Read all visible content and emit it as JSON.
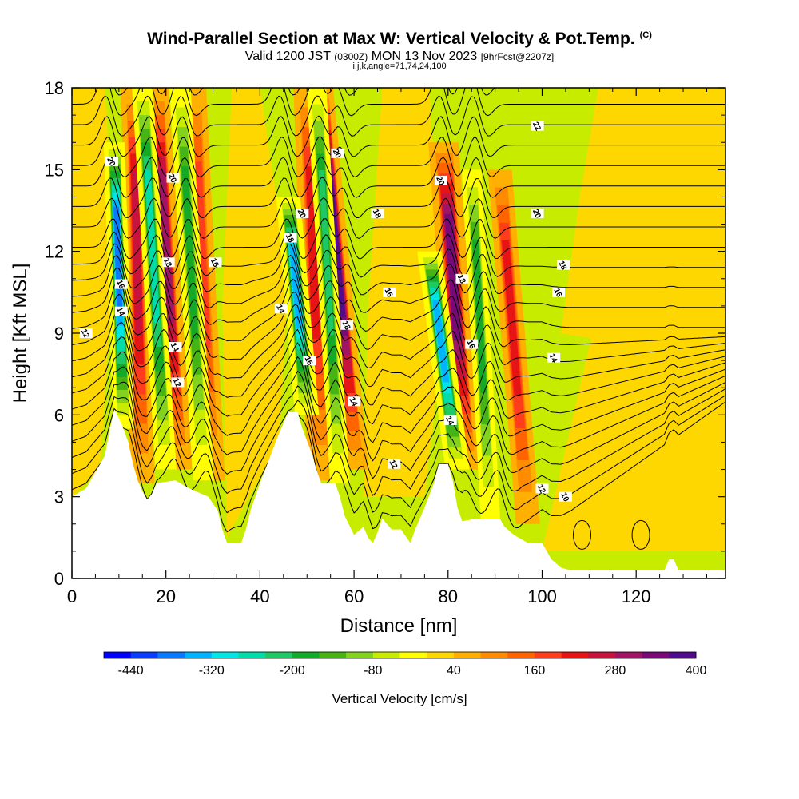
{
  "title": {
    "main": "Wind-Parallel Section at Max W: Vertical Velocity & Pot.Temp.",
    "copyright": "(C)",
    "sub_valid": "Valid 1200 JST",
    "sub_utc": "(0300Z)",
    "sub_date": "MON 13 Nov 2023",
    "sub_fcst": "[9hrFcst@2207z]",
    "meta": "i,j,k,angle=71,74,24,100"
  },
  "chart_data": {
    "type": "heatmap",
    "xlabel": "Distance [nm]",
    "ylabel": "Height [Kft MSL]",
    "xlim": [
      0,
      139
    ],
    "ylim": [
      0,
      18
    ],
    "x_ticks": [
      "0",
      "20",
      "40",
      "60",
      "80",
      "100",
      "120"
    ],
    "y_ticks": [
      "0",
      "3",
      "6",
      "9",
      "12",
      "15",
      "18"
    ],
    "x_tick_values": [
      0,
      20,
      40,
      60,
      80,
      100,
      120
    ],
    "y_tick_values": [
      0,
      3,
      6,
      9,
      12,
      15,
      18
    ],
    "colorbar": {
      "title": "Vertical Velocity [cm/s]",
      "tick_labels": [
        "-440",
        "-320",
        "-200",
        "-80",
        "40",
        "160",
        "280",
        "400"
      ],
      "tick_values": [
        -440,
        -320,
        -200,
        -80,
        40,
        160,
        280,
        400
      ],
      "colors": [
        "#0000ff",
        "#0a3cff",
        "#0a78ff",
        "#00b4ff",
        "#00e6e6",
        "#00dcaa",
        "#1ec864",
        "#14aa28",
        "#46b414",
        "#82d21e",
        "#c8ec00",
        "#ffff00",
        "#ffd700",
        "#ffb000",
        "#ff8c00",
        "#ff6400",
        "#ff3c1e",
        "#e61414",
        "#c8143c",
        "#a01464",
        "#780a78",
        "#500a8c"
      ]
    },
    "terrain_profile": [
      {
        "x": 0,
        "y": 3.0
      },
      {
        "x": 3,
        "y": 3.3
      },
      {
        "x": 5,
        "y": 3.9
      },
      {
        "x": 7,
        "y": 4.5
      },
      {
        "x": 8,
        "y": 5.4
      },
      {
        "x": 9,
        "y": 6.2
      },
      {
        "x": 10.5,
        "y": 5.7
      },
      {
        "x": 12,
        "y": 5.0
      },
      {
        "x": 13,
        "y": 4.2
      },
      {
        "x": 14,
        "y": 3.6
      },
      {
        "x": 15,
        "y": 3.2
      },
      {
        "x": 16,
        "y": 2.9
      },
      {
        "x": 17,
        "y": 3.1
      },
      {
        "x": 18,
        "y": 3.5
      },
      {
        "x": 22,
        "y": 3.6
      },
      {
        "x": 25,
        "y": 3.3
      },
      {
        "x": 29,
        "y": 3.0
      },
      {
        "x": 31,
        "y": 2.5
      },
      {
        "x": 32,
        "y": 1.8
      },
      {
        "x": 33,
        "y": 1.3
      },
      {
        "x": 36,
        "y": 1.3
      },
      {
        "x": 37,
        "y": 1.8
      },
      {
        "x": 38,
        "y": 2.5
      },
      {
        "x": 40,
        "y": 3.5
      },
      {
        "x": 42,
        "y": 4.4
      },
      {
        "x": 44,
        "y": 5.3
      },
      {
        "x": 46,
        "y": 6.1
      },
      {
        "x": 48,
        "y": 6.1
      },
      {
        "x": 49,
        "y": 5.5
      },
      {
        "x": 51,
        "y": 4.6
      },
      {
        "x": 52,
        "y": 4.0
      },
      {
        "x": 53,
        "y": 3.5
      },
      {
        "x": 56,
        "y": 3.5
      },
      {
        "x": 57,
        "y": 3.0
      },
      {
        "x": 58,
        "y": 2.3
      },
      {
        "x": 60,
        "y": 1.6
      },
      {
        "x": 62,
        "y": 1.9
      },
      {
        "x": 63,
        "y": 1.5
      },
      {
        "x": 64,
        "y": 1.3
      },
      {
        "x": 65,
        "y": 1.7
      },
      {
        "x": 66,
        "y": 2.2
      },
      {
        "x": 68,
        "y": 1.8
      },
      {
        "x": 70,
        "y": 1.8
      },
      {
        "x": 72,
        "y": 1.3
      },
      {
        "x": 73,
        "y": 1.8
      },
      {
        "x": 75,
        "y": 2.6
      },
      {
        "x": 77,
        "y": 3.5
      },
      {
        "x": 78,
        "y": 4.2
      },
      {
        "x": 80,
        "y": 4.2
      },
      {
        "x": 81,
        "y": 3.6
      },
      {
        "x": 82,
        "y": 2.6
      },
      {
        "x": 83,
        "y": 2.1
      },
      {
        "x": 86,
        "y": 2.2
      },
      {
        "x": 87,
        "y": 2.2
      },
      {
        "x": 91,
        "y": 2.2
      },
      {
        "x": 92,
        "y": 1.9
      },
      {
        "x": 94,
        "y": 1.6
      },
      {
        "x": 97,
        "y": 1.3
      },
      {
        "x": 100,
        "y": 1.3
      },
      {
        "x": 101,
        "y": 1.0
      },
      {
        "x": 102,
        "y": 0.7
      },
      {
        "x": 104,
        "y": 0.4
      },
      {
        "x": 106,
        "y": 0.3
      },
      {
        "x": 126,
        "y": 0.3
      },
      {
        "x": 127,
        "y": 0.7
      },
      {
        "x": 128,
        "y": 0.7
      },
      {
        "x": 129,
        "y": 0.3
      },
      {
        "x": 139,
        "y": 0.3
      }
    ],
    "updraft_bands": [
      {
        "x_base": 15,
        "y_base": 3.5,
        "x_top": 13,
        "y_top": 18,
        "half_width": 1.6,
        "w": 200
      },
      {
        "x_base": 23,
        "y_base": 4.0,
        "x_top": 18,
        "y_top": 18,
        "half_width": 1.6,
        "w": 240
      },
      {
        "x_base": 30,
        "y_base": 3.6,
        "x_top": 26,
        "y_top": 18,
        "half_width": 1.6,
        "w": 130
      },
      {
        "x_base": 53,
        "y_base": 3.6,
        "x_top": 50,
        "y_top": 18,
        "half_width": 1.8,
        "w": 160
      },
      {
        "x_base": 60.5,
        "y_base": 4.0,
        "x_top": 53,
        "y_top": 18,
        "half_width": 1.6,
        "w": 300
      },
      {
        "x_base": 84,
        "y_base": 4.0,
        "x_top": 79,
        "y_top": 16,
        "half_width": 2.0,
        "w": 290
      },
      {
        "x_base": 97,
        "y_base": 2.0,
        "x_top": 91,
        "y_top": 15,
        "half_width": 1.6,
        "w": 150
      }
    ],
    "downdraft_bands": [
      {
        "x_base": 11,
        "y_base": 5.5,
        "x_top": 9,
        "y_top": 16,
        "half_width": 1.4,
        "w": -340
      },
      {
        "x_base": 20,
        "y_base": 4.0,
        "x_top": 15,
        "y_top": 18,
        "half_width": 1.4,
        "w": -220
      },
      {
        "x_base": 28,
        "y_base": 3.6,
        "x_top": 23,
        "y_top": 18,
        "half_width": 1.4,
        "w": -140
      },
      {
        "x_base": 50,
        "y_base": 6.0,
        "x_top": 46,
        "y_top": 14,
        "half_width": 1.6,
        "w": -330
      },
      {
        "x_base": 57,
        "y_base": 3.5,
        "x_top": 52,
        "y_top": 18,
        "half_width": 1.3,
        "w": -210
      },
      {
        "x_base": 82,
        "y_base": 4.0,
        "x_top": 76,
        "y_top": 12,
        "half_width": 1.6,
        "w": -320
      },
      {
        "x_base": 89,
        "y_base": 2.2,
        "x_top": 85,
        "y_top": 15,
        "half_width": 1.3,
        "w": -150
      }
    ],
    "isentrope_labels": [
      {
        "x": 8.5,
        "y": 15.3,
        "text": "20"
      },
      {
        "x": 21.5,
        "y": 14.7,
        "text": "20"
      },
      {
        "x": 10.5,
        "y": 10.8,
        "text": "16"
      },
      {
        "x": 20.5,
        "y": 11.6,
        "text": "18"
      },
      {
        "x": 30.5,
        "y": 11.6,
        "text": "16"
      },
      {
        "x": 10.5,
        "y": 9.8,
        "text": "14"
      },
      {
        "x": 3,
        "y": 9.0,
        "text": "12"
      },
      {
        "x": 22,
        "y": 8.5,
        "text": "14"
      },
      {
        "x": 22.5,
        "y": 7.2,
        "text": "12"
      },
      {
        "x": 49,
        "y": 13.4,
        "text": "20"
      },
      {
        "x": 46.5,
        "y": 12.5,
        "text": "18"
      },
      {
        "x": 44.5,
        "y": 9.9,
        "text": "14"
      },
      {
        "x": 50.5,
        "y": 8.0,
        "text": "16"
      },
      {
        "x": 56.5,
        "y": 15.6,
        "text": "20"
      },
      {
        "x": 65,
        "y": 13.4,
        "text": "18"
      },
      {
        "x": 67.5,
        "y": 10.5,
        "text": "16"
      },
      {
        "x": 58.5,
        "y": 9.3,
        "text": "18"
      },
      {
        "x": 60,
        "y": 6.5,
        "text": "14"
      },
      {
        "x": 68.5,
        "y": 4.2,
        "text": "12"
      },
      {
        "x": 78.5,
        "y": 14.6,
        "text": "20"
      },
      {
        "x": 83,
        "y": 11.0,
        "text": "18"
      },
      {
        "x": 85,
        "y": 8.6,
        "text": "16"
      },
      {
        "x": 80.5,
        "y": 5.8,
        "text": "14"
      },
      {
        "x": 99,
        "y": 16.6,
        "text": "22"
      },
      {
        "x": 99,
        "y": 13.4,
        "text": "20"
      },
      {
        "x": 104.5,
        "y": 11.5,
        "text": "18"
      },
      {
        "x": 103.5,
        "y": 10.5,
        "text": "16"
      },
      {
        "x": 102.5,
        "y": 8.1,
        "text": "14"
      },
      {
        "x": 100,
        "y": 3.3,
        "text": "12"
      },
      {
        "x": 105,
        "y": 3.0,
        "text": "10"
      }
    ]
  }
}
